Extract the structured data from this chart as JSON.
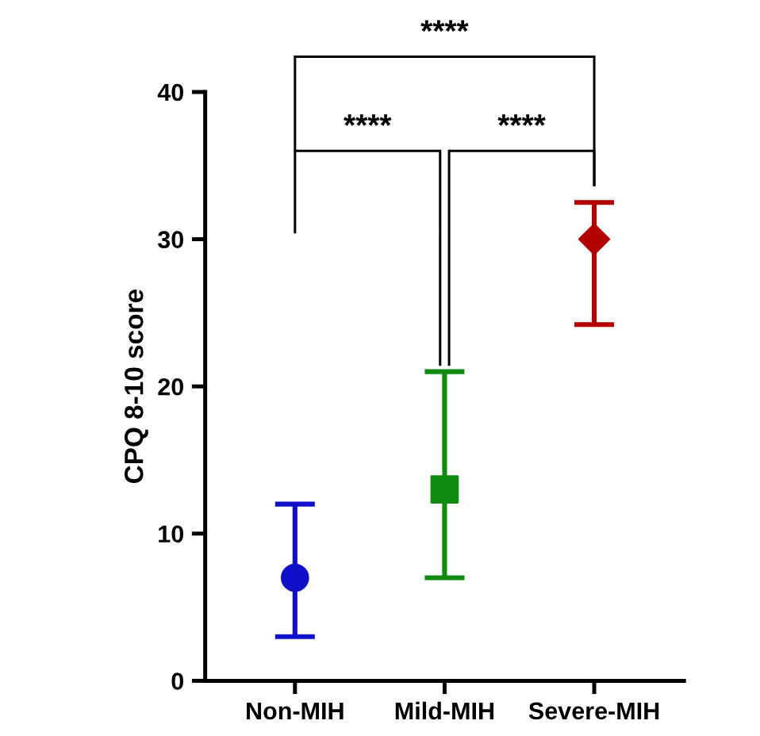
{
  "chart_data": {
    "type": "scatter",
    "ylabel": "CPQ 8-10 score",
    "categories": [
      "Non-MIH",
      "Mild-MIH",
      "Severe-MIH"
    ],
    "series": [
      {
        "color": "#1010c8",
        "values": [
          7,
          null,
          null
        ],
        "errors": [
          [
            3,
            12
          ],
          null,
          null
        ],
        "marker": "circle"
      },
      {
        "color": "#108a10",
        "values": [
          null,
          13,
          null
        ],
        "errors": [
          null,
          [
            7,
            21
          ],
          null
        ],
        "marker": "square"
      },
      {
        "color": "#b00000",
        "values": [
          null,
          null,
          30
        ],
        "errors": [
          null,
          null,
          [
            24.2,
            32.5
          ]
        ],
        "marker": "diamond"
      }
    ],
    "ylim": [
      0,
      40
    ],
    "yticks": [
      0,
      10,
      20,
      30,
      40
    ],
    "grid": false,
    "legend": false,
    "annotations": [
      "****",
      "****",
      "****"
    ]
  }
}
